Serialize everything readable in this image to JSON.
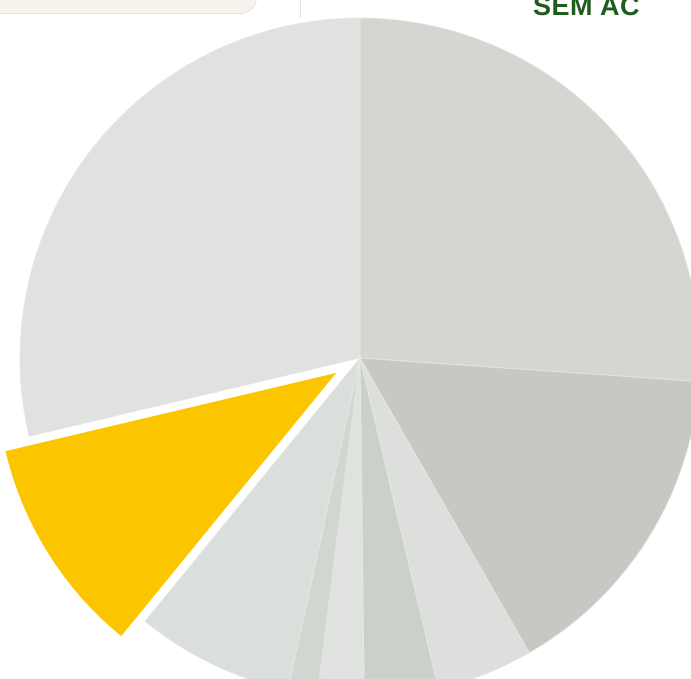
{
  "header": {
    "label": "SEM AC"
  },
  "chart_data": {
    "type": "pie",
    "title": "",
    "start_angle_deg": 0,
    "direction": "clockwise",
    "slices": [
      {
        "value": 26.1,
        "color": "#d3d6d1",
        "exploded": false
      },
      {
        "value": 15.6,
        "color": "#c5c8c3",
        "exploded": false
      },
      {
        "value": 4.6,
        "color": "#dcdfdb",
        "exploded": false
      },
      {
        "value": 3.5,
        "color": "#ccd0cb",
        "exploded": false
      },
      {
        "value": 2.2,
        "color": "#dfe2de",
        "exploded": false
      },
      {
        "value": 1.4,
        "color": "#d2d6d1",
        "exploded": false
      },
      {
        "value": 7.5,
        "color": "#dbdfdb",
        "exploded": false
      },
      {
        "value": 10.4,
        "color": "#fbc600",
        "exploded": true
      },
      {
        "value": 28.7,
        "color": "#dfe2de",
        "exploded": false
      }
    ]
  }
}
